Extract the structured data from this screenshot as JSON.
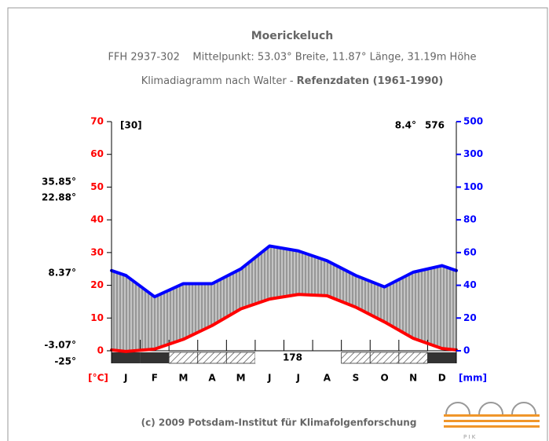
{
  "header": {
    "title": "Moerickeluch",
    "subtitle": "FFH 2937-302    Mittelpunkt: 53.03° Breite, 11.87° Länge, 31.19m Höhe",
    "line3": "Klimadiagramm nach Walter - ",
    "line3_bold": "Refenzdaten (1961-1990)"
  },
  "chart_data": {
    "type": "walter",
    "categories": [
      "J",
      "F",
      "M",
      "A",
      "M",
      "J",
      "J",
      "A",
      "S",
      "O",
      "N",
      "D"
    ],
    "series": [
      {
        "name": "[°C]",
        "color": "#ff0000",
        "values": [
          -0.2,
          0.5,
          3.5,
          7.7,
          12.8,
          15.8,
          17.2,
          16.8,
          13.3,
          8.8,
          3.8,
          0.7
        ]
      },
      {
        "name": "[mm]",
        "color": "#0000ff",
        "axis": "y2",
        "values": [
          46,
          33,
          41,
          41,
          50,
          64,
          61,
          55,
          46,
          39,
          48,
          52
        ]
      }
    ],
    "ylim": [
      0,
      70
    ],
    "yticks": [
      0,
      10,
      20,
      30,
      40,
      50,
      60,
      70
    ],
    "y2lim": [
      0,
      500
    ],
    "y2ticks": [
      0,
      20,
      40,
      60,
      80,
      100,
      300,
      500
    ],
    "years": "[30]",
    "mean_temp": "8.4°",
    "annual_precip": 576,
    "side_labels": [
      "35.85°",
      "22.88°",
      "8.37°",
      "-3.07°",
      "-25°"
    ],
    "frost_free_days": 178,
    "frost_band": [
      2,
      2,
      1,
      1,
      1,
      0,
      0,
      0,
      1,
      1,
      1,
      2
    ],
    "fill": "#bdbdbd"
  },
  "footer": {
    "copyright": "(c) 2009 Potsdam-Institut für Klimafolgenforschung"
  }
}
